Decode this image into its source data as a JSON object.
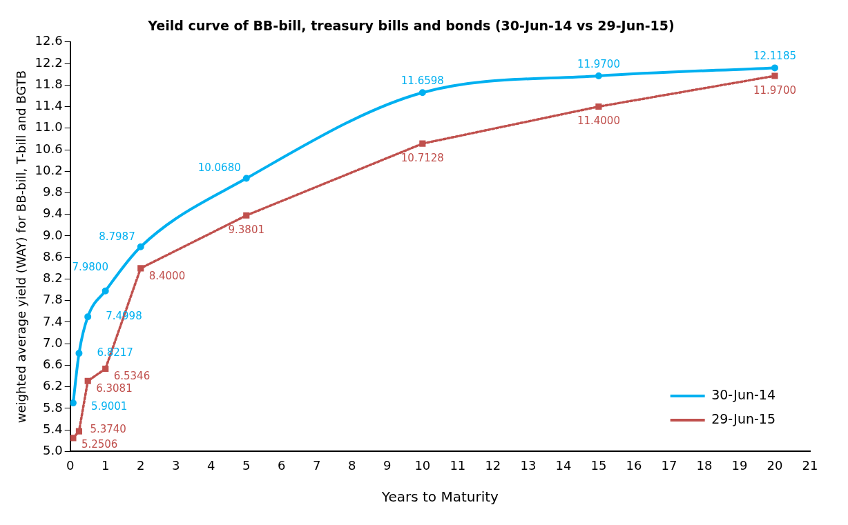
{
  "chart_data": {
    "type": "line",
    "title": "Yeild curve of BB-bill, treasury bills and bonds (30-Jun-14 vs 29-Jun-15)",
    "xlabel": "Years to Maturity",
    "ylabel": "weighted average yield (WAY) for BB-bill, T-bill and BGTB",
    "x": [
      0.0833,
      0.25,
      0.5,
      1,
      2,
      5,
      10,
      15,
      20
    ],
    "series": [
      {
        "name": "30-Jun-14",
        "color": "#00b0f0",
        "values": [
          5.9001,
          6.8217,
          7.4998,
          7.98,
          8.7987,
          10.068,
          11.6598,
          11.97,
          12.1185
        ],
        "marker": "circle",
        "line_style": "solid",
        "value_labels": [
          "5.9001",
          "6.8217",
          "7.4998",
          "7.9800",
          "8.7987",
          "10.0680",
          "11.6598",
          "11.9700",
          "12.1185"
        ]
      },
      {
        "name": "29-Jun-15",
        "color": "#c0504d",
        "values": [
          5.2506,
          5.374,
          6.3081,
          6.5346,
          8.4,
          9.3801,
          10.7128,
          11.4,
          11.97
        ],
        "marker": "square",
        "line_style": "dotted",
        "value_labels": [
          "5.2506",
          "5.3740",
          "6.3081",
          "6.5346",
          "8.4000",
          "9.3801",
          "10.7128",
          "11.4000",
          "11.9700"
        ]
      }
    ],
    "xlim": [
      0,
      21
    ],
    "xticks": [
      0,
      1,
      2,
      3,
      4,
      5,
      6,
      7,
      8,
      9,
      10,
      11,
      12,
      13,
      14,
      15,
      16,
      17,
      18,
      19,
      20,
      21
    ],
    "ylim": [
      5.0,
      12.6
    ],
    "yticks": [
      {
        "value": 5.0,
        "label": "5.0"
      },
      {
        "value": 5.4,
        "label": "5.4"
      },
      {
        "value": 5.8,
        "label": "5.8"
      },
      {
        "value": 6.2,
        "label": "6.2"
      },
      {
        "value": 6.6,
        "label": "6.6"
      },
      {
        "value": 7.0,
        "label": "7.0"
      },
      {
        "value": 7.4,
        "label": "7.4"
      },
      {
        "value": 7.8,
        "label": "7.8"
      },
      {
        "value": 8.2,
        "label": "8.2"
      },
      {
        "value": 8.6,
        "label": "8.6"
      },
      {
        "value": 9.0,
        "label": "9.0"
      },
      {
        "value": 9.4,
        "label": "9.4"
      },
      {
        "value": 9.8,
        "label": "9.8"
      },
      {
        "value": 10.2,
        "label": "10.2"
      },
      {
        "value": 10.6,
        "label": "10.6"
      },
      {
        "value": 11.0,
        "label": "11.0"
      },
      {
        "value": 11.4,
        "label": "11.4"
      },
      {
        "value": 11.8,
        "label": "11.8"
      },
      {
        "value": 12.2,
        "label": "12.2"
      },
      {
        "value": 12.6,
        "label": "12.6"
      }
    ],
    "grid": false,
    "legend": "bottom right"
  }
}
